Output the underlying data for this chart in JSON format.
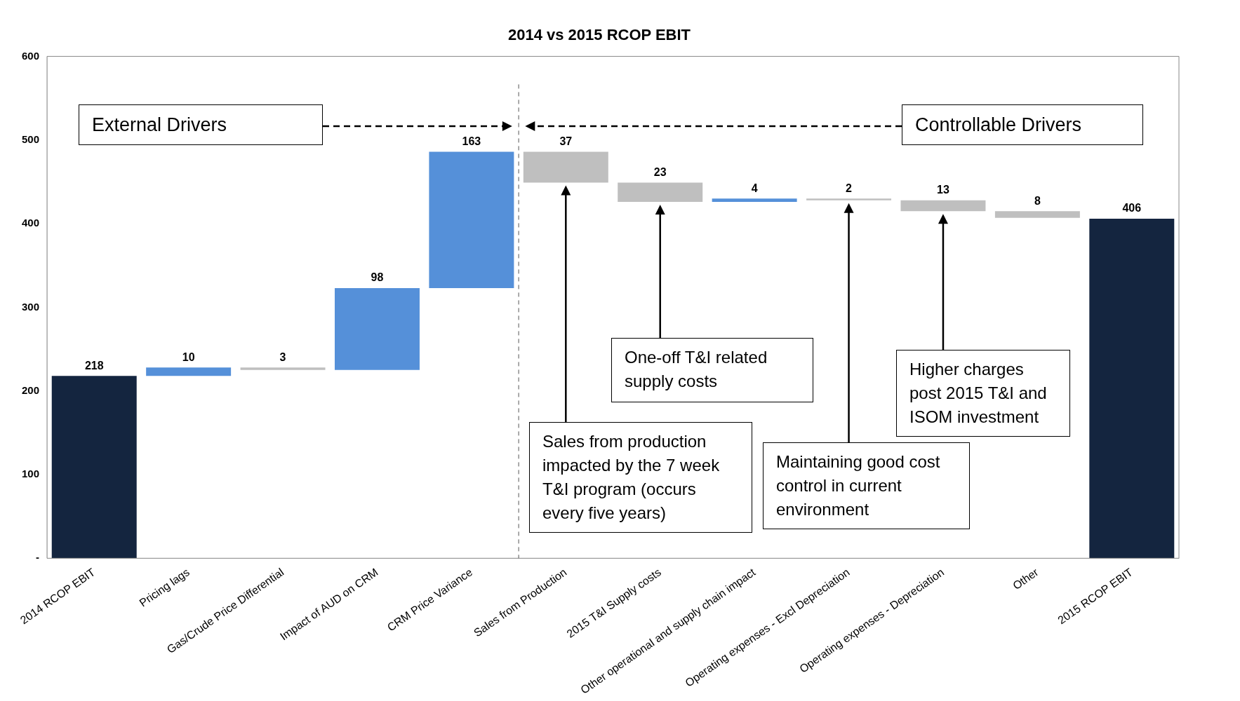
{
  "chart_data": {
    "type": "bar",
    "title": "2014 vs 2015 RCOP EBIT",
    "categories": [
      "2014 RCOP EBIT",
      "Pricing lags",
      "Gas/Crude Price Differential",
      "Impact of AUD on CRM",
      "CRM Price Variance",
      "Sales from Production",
      "2015 T&I Supply costs",
      "Other operational and supply chain impact",
      "Operating expenses - Excl Depreciation",
      "Operating expenses - Depreciation",
      "Other",
      "2015 RCOP EBIT"
    ],
    "values": [
      218,
      10,
      3,
      98,
      163,
      37,
      23,
      4,
      2,
      13,
      8,
      406
    ],
    "base": [
      0,
      218,
      225,
      225,
      323,
      449,
      426,
      426,
      428,
      415,
      407,
      0
    ],
    "colors": [
      "#14253f",
      "#5590d9",
      "#bfbfbf",
      "#5590d9",
      "#5590d9",
      "#bfbfbf",
      "#bfbfbf",
      "#5590d9",
      "#bfbfbf",
      "#bfbfbf",
      "#bfbfbf",
      "#14253f"
    ],
    "value_labels": [
      "218",
      "10",
      "3",
      "98",
      "163",
      "37",
      "23",
      "4",
      "2",
      "13",
      "8",
      "406"
    ],
    "ylim": [
      0,
      600
    ],
    "yticks": [
      {
        "value": 0,
        "label": "-"
      },
      100,
      200,
      300,
      400,
      500,
      600
    ],
    "grid": false,
    "legend": false,
    "annotations": [
      "External Drivers",
      "Controllable Drivers",
      "Sales from production impacted by the 7 week T&I program (occurs every five years)",
      "One-off T&I related supply costs",
      "Maintaining good cost control in current environment",
      "Higher charges post 2015 T&I and ISOM investment"
    ]
  }
}
